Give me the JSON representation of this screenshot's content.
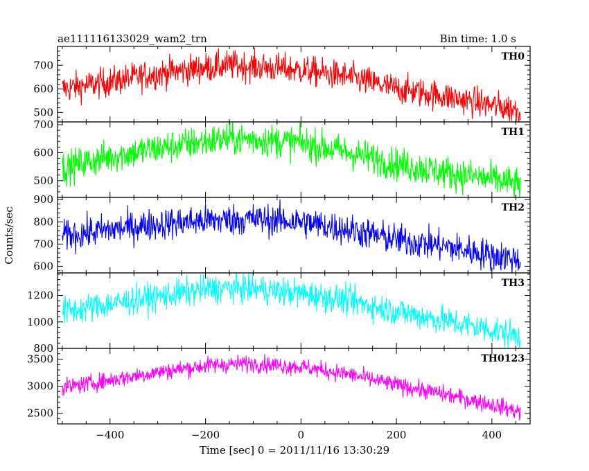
{
  "chart_data": {
    "type": "line",
    "title": "ae111116133029_wam2_trn",
    "bin_time_label": "Bin time: 1.0 s",
    "xlabel": "Time [sec] 0 = 2011/11/16 13:30:29",
    "ylabel": "Counts/sec",
    "xlim": [
      -510,
      480
    ],
    "x_range": [
      -500,
      460
    ],
    "xticks": [
      -400,
      -200,
      0,
      200,
      400
    ],
    "panels": [
      {
        "name": "TH0",
        "color": "#ff0000",
        "ylim": [
          460,
          780
        ],
        "yticks": [
          500,
          600,
          700
        ],
        "profile_x": [
          -500,
          -400,
          -300,
          -200,
          -150,
          -100,
          0,
          100,
          200,
          300,
          400,
          460
        ],
        "profile_y": [
          600,
          630,
          665,
          690,
          700,
          695,
          680,
          650,
          600,
          570,
          530,
          510
        ],
        "noise": 32
      },
      {
        "name": "TH1",
        "color": "#00ff00",
        "ylim": [
          440,
          710
        ],
        "yticks": [
          500,
          600,
          700
        ],
        "profile_x": [
          -500,
          -400,
          -300,
          -200,
          -150,
          -100,
          0,
          100,
          200,
          300,
          400,
          460
        ],
        "profile_y": [
          545,
          585,
          615,
          640,
          650,
          648,
          635,
          600,
          560,
          530,
          505,
          485
        ],
        "noise": 30
      },
      {
        "name": "TH2",
        "color": "#0000ff",
        "ylim": [
          570,
          910
        ],
        "yticks": [
          600,
          700,
          800,
          900
        ],
        "profile_x": [
          -500,
          -400,
          -300,
          -200,
          -150,
          -100,
          0,
          100,
          200,
          300,
          400,
          460
        ],
        "profile_y": [
          735,
          765,
          790,
          805,
          810,
          812,
          800,
          765,
          720,
          690,
          650,
          630
        ],
        "noise": 36
      },
      {
        "name": "TH3",
        "color": "#00ffff",
        "ylim": [
          800,
          1370
        ],
        "yticks": [
          800,
          1000,
          1200
        ],
        "profile_x": [
          -500,
          -400,
          -300,
          -200,
          -150,
          -100,
          0,
          100,
          200,
          300,
          400,
          460
        ],
        "profile_y": [
          1075,
          1135,
          1190,
          1245,
          1255,
          1250,
          1215,
          1160,
          1080,
          1010,
          940,
          890
        ],
        "noise": 55
      },
      {
        "name": "TH0123",
        "color": "#ff00ff",
        "ylim": [
          2300,
          3700
        ],
        "yticks": [
          2500,
          3000,
          3500
        ],
        "profile_x": [
          -500,
          -400,
          -300,
          -200,
          -150,
          -100,
          0,
          100,
          200,
          300,
          400,
          460
        ],
        "profile_y": [
          2970,
          3110,
          3260,
          3380,
          3410,
          3420,
          3360,
          3220,
          3020,
          2850,
          2660,
          2520
        ],
        "noise": 80
      }
    ]
  }
}
